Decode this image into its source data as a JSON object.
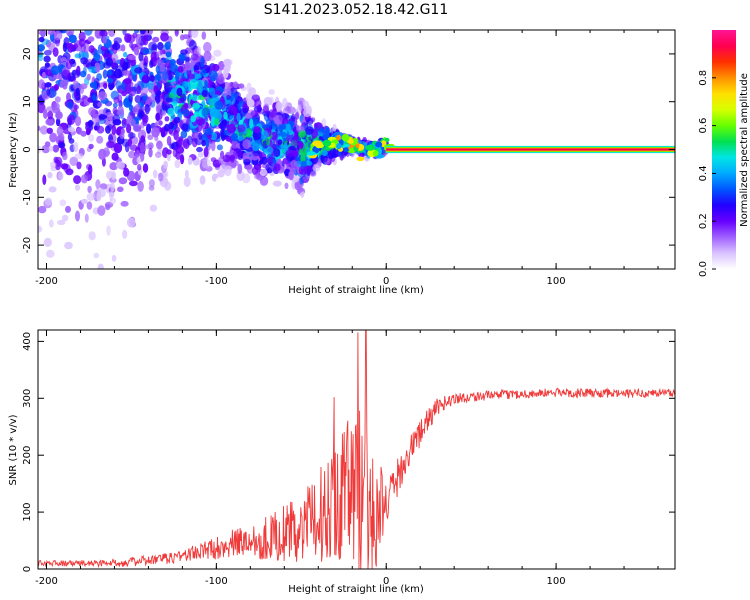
{
  "figure": {
    "title": "S141.2023.052.18.42.G11"
  },
  "colors": {
    "snr_line": "#f03a3a",
    "frame": "#000000",
    "background": "#ffffff"
  },
  "colormap": [
    "#ffffff",
    "#d9c2ff",
    "#a060ff",
    "#6600ff",
    "#2200ff",
    "#0055ff",
    "#00aaff",
    "#00e5e5",
    "#00e050",
    "#66ff00",
    "#d6ff00",
    "#ffe000",
    "#ff9000",
    "#ff3000",
    "#ff0050",
    "#ff1493"
  ],
  "colorbar": {
    "label": "Normalized spectral amplitude",
    "ticks": [
      "0.0",
      "0.2",
      "0.4",
      "0.6",
      "0.8"
    ],
    "range": [
      0.0,
      1.0
    ]
  },
  "chart_data": [
    {
      "type": "heatmap",
      "name_key": "spectrogram",
      "xlabel": "Height of straight line (km)",
      "ylabel": "Frequency (Hz)",
      "xlim": [
        -205,
        170
      ],
      "ylim": [
        -25,
        25
      ],
      "xticks": [
        -200,
        -100,
        0,
        100
      ],
      "xtick_labels": [
        "-200",
        "-100",
        "0",
        "100"
      ],
      "yticks": [
        -20,
        -10,
        0,
        10,
        20
      ],
      "ytick_labels": [
        "-20",
        "-10",
        "0",
        "10",
        "20"
      ],
      "carrier_frequency_hz": 0,
      "ridge": {
        "x": [
          -200,
          -150,
          -130,
          -110,
          -100,
          -90,
          -80,
          -70,
          -60,
          -50,
          -40,
          -30,
          -20,
          -10,
          0,
          10,
          20,
          170
        ],
        "freq": [
          20,
          16,
          12,
          10,
          8,
          6,
          3,
          2,
          1,
          0,
          1,
          1,
          1,
          0,
          0.5,
          0,
          0,
          0
        ],
        "spread_hz": [
          25,
          25,
          12,
          10,
          8,
          7,
          6,
          6,
          6,
          6,
          3,
          2,
          1,
          1,
          0.8,
          0.5,
          0.5,
          0.5
        ]
      }
    },
    {
      "type": "line",
      "name_key": "snr",
      "xlabel": "Height of straight line (km)",
      "ylabel": "SNR (10 * v/v)",
      "xlim": [
        -205,
        170
      ],
      "ylim": [
        0,
        420
      ],
      "xticks": [
        -200,
        -100,
        0,
        100
      ],
      "xtick_labels": [
        "-200",
        "-100",
        "0",
        "100"
      ],
      "yticks": [
        0,
        100,
        200,
        300,
        400
      ],
      "ytick_labels": [
        "0",
        "100",
        "200",
        "300",
        "400"
      ],
      "envelope": {
        "x": [
          -205,
          -170,
          -150,
          -130,
          -110,
          -90,
          -70,
          -50,
          -40,
          -30,
          -20,
          -15,
          -10,
          0,
          10,
          20,
          30,
          40,
          60,
          100,
          140,
          170
        ],
        "mean": [
          10,
          10,
          12,
          18,
          30,
          45,
          55,
          70,
          90,
          130,
          140,
          120,
          100,
          110,
          185,
          240,
          285,
          300,
          305,
          310,
          308,
          310
        ],
        "noise": [
          5,
          6,
          8,
          10,
          15,
          25,
          40,
          60,
          80,
          110,
          150,
          180,
          150,
          40,
          30,
          25,
          15,
          10,
          8,
          8,
          8,
          8
        ]
      },
      "peak": {
        "x": -12,
        "y": 420
      }
    }
  ]
}
